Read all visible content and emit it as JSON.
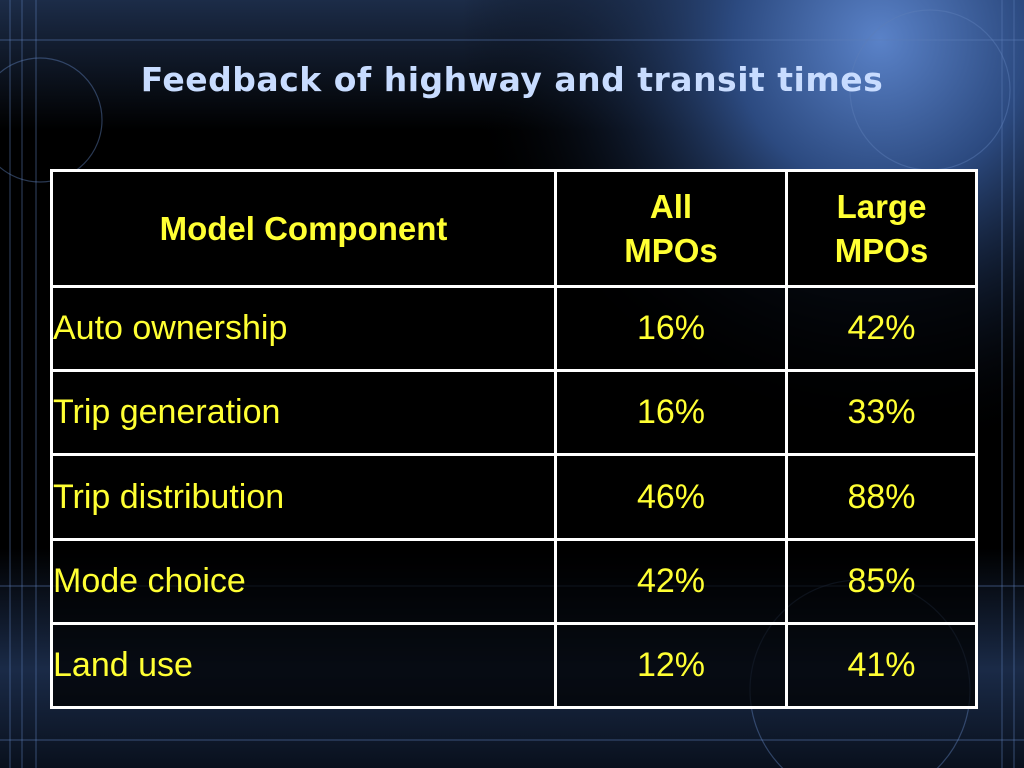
{
  "slide": {
    "title": "Feedback of highway and transit times"
  },
  "table": {
    "headers": {
      "component": "Model Component",
      "all_line1": "All",
      "all_line2": "MPOs",
      "large_line1": "Large",
      "large_line2": "MPOs"
    },
    "rows": [
      {
        "component": "Auto ownership",
        "all": "16%",
        "large": "42%"
      },
      {
        "component": "Trip generation",
        "all": "16%",
        "large": "33%"
      },
      {
        "component": "Trip distribution",
        "all": "46%",
        "large": "88%"
      },
      {
        "component": "Mode choice",
        "all": "42%",
        "large": "85%"
      },
      {
        "component": "Land use",
        "all": "12%",
        "large": "41%"
      }
    ]
  },
  "colors": {
    "background": "#000000",
    "title": "#c8dcff",
    "cell_text": "#ffff33",
    "border": "#ffffff",
    "accent_blue": "#3a5f9c"
  }
}
